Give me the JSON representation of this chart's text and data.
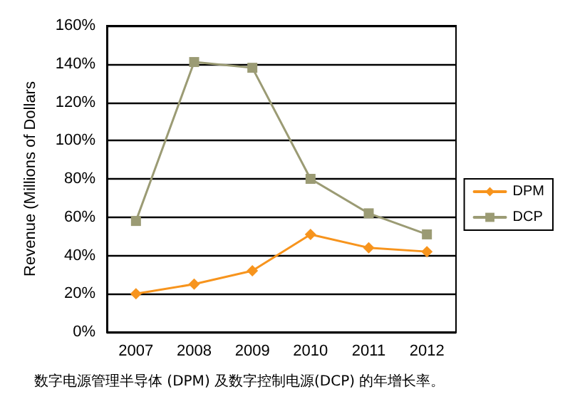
{
  "chart_data": {
    "type": "line",
    "ylabel": "Revenue (Millions of Dollars",
    "categories": [
      "2007",
      "2008",
      "2009",
      "2010",
      "2011",
      "2012"
    ],
    "series": [
      {
        "name": "DPM",
        "color": "#f7941d",
        "marker": "diamond",
        "values": [
          20,
          25,
          32,
          51,
          44,
          42
        ]
      },
      {
        "name": "DCP",
        "color": "#9b9b74",
        "marker": "square",
        "values": [
          58,
          141,
          138,
          80,
          62,
          51
        ]
      }
    ],
    "ylim": [
      0,
      160
    ],
    "yticks": [
      {
        "value": 0,
        "label": "0%"
      },
      {
        "value": 20,
        "label": "20%"
      },
      {
        "value": 40,
        "label": "40%"
      },
      {
        "value": 60,
        "label": "60%"
      },
      {
        "value": 80,
        "label": "80%"
      },
      {
        "value": 100,
        "label": "100%"
      },
      {
        "value": 120,
        "label": "120%"
      },
      {
        "value": 140,
        "label": "140%"
      },
      {
        "value": 160,
        "label": "160%"
      }
    ],
    "grid": "y",
    "legend": "right",
    "annotations": [
      "数字电源管理半导体 (DPM) 及数字控制电源(DCP) 的年增长率。"
    ]
  }
}
